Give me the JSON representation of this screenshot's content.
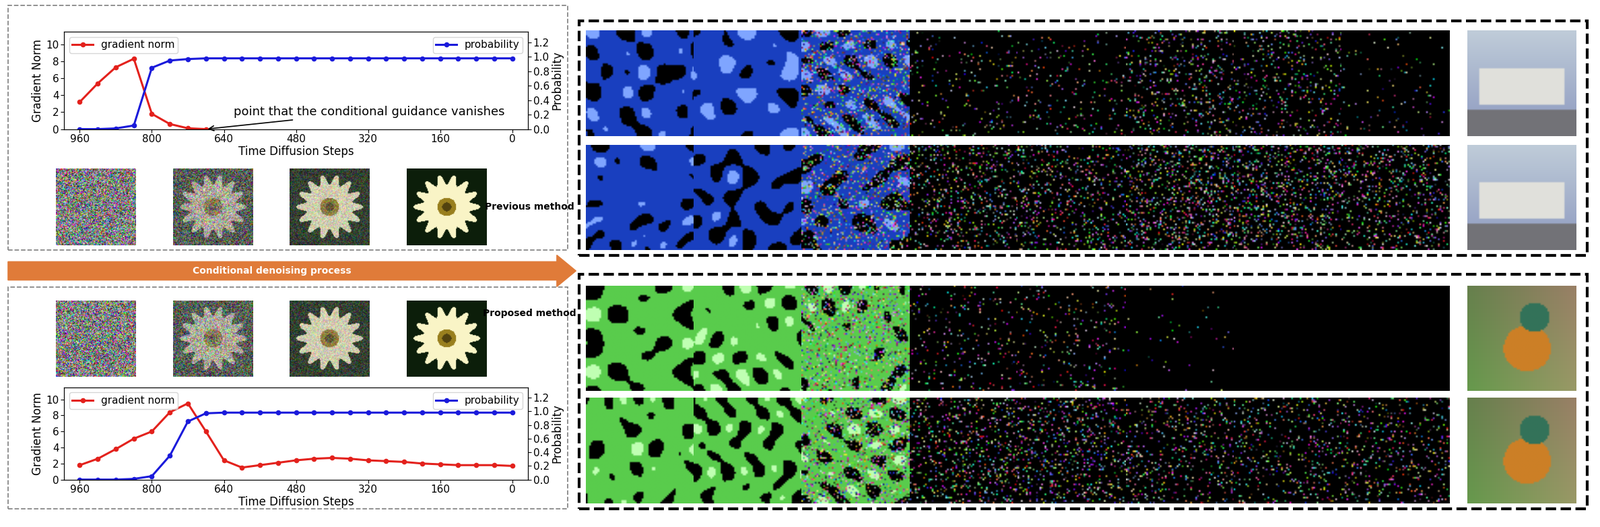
{
  "labels": {
    "previous": "Previous method",
    "proposed": "Proposed method",
    "process": "Conditional denoising process"
  },
  "chart_data": [
    {
      "type": "line",
      "x": [
        960,
        920,
        880,
        840,
        800,
        760,
        720,
        680,
        640,
        600,
        560,
        520,
        480,
        440,
        400,
        360,
        320,
        280,
        240,
        200,
        160,
        120,
        80,
        40,
        0
      ],
      "xlim": [
        995,
        -35
      ],
      "xticks": [
        960,
        800,
        640,
        480,
        320,
        160,
        0
      ],
      "xlabel": "Time Diffusion Steps",
      "ylabel": "Gradient Norm",
      "y2label": "Probability",
      "ylim": [
        0,
        11.5
      ],
      "yticks": [
        0,
        2,
        4,
        6,
        8,
        10
      ],
      "y2lim": [
        0,
        1.35
      ],
      "y2ticks": [
        {
          "value": 0,
          "label": "0.0"
        },
        {
          "value": 0.2,
          "label": "0.2"
        },
        {
          "value": 0.4,
          "label": "0.4"
        },
        {
          "value": 0.6,
          "label": "0.6"
        },
        {
          "value": 0.8,
          "label": "0.8"
        },
        {
          "value": 1.0,
          "label": "1.0"
        },
        {
          "value": 1.2,
          "label": "1.2"
        }
      ],
      "series": [
        {
          "name": "gradient norm",
          "color": "#e3211c",
          "marker": "o",
          "line_style": "-",
          "legend": "upper left",
          "values": [
            3.2,
            5.4,
            7.3,
            8.3,
            1.8,
            0.6,
            0.1,
            0.0,
            null,
            null,
            null,
            null,
            null,
            null,
            null,
            null,
            null,
            null,
            null,
            null,
            null,
            null,
            null,
            null,
            null
          ]
        },
        {
          "name": "probability",
          "color": "#1a1adb",
          "marker": "o",
          "line_style": "-",
          "legend": "upper right",
          "axis": "y2",
          "values": [
            0.0,
            0.0,
            0.01,
            0.05,
            0.85,
            0.95,
            0.97,
            0.98,
            0.98,
            0.98,
            0.98,
            0.98,
            0.98,
            0.98,
            0.98,
            0.98,
            0.98,
            0.98,
            0.98,
            0.98,
            0.98,
            0.98,
            0.98,
            0.98,
            0.98
          ]
        }
      ],
      "annotation": {
        "text": "point that the conditional guidance vanishes",
        "x": 680,
        "y": 0
      }
    },
    {
      "type": "line",
      "x": [
        960,
        920,
        880,
        840,
        800,
        760,
        720,
        680,
        640,
        600,
        560,
        520,
        480,
        440,
        400,
        360,
        320,
        280,
        240,
        200,
        160,
        120,
        80,
        40,
        0
      ],
      "xlim": [
        995,
        -35
      ],
      "xticks": [
        960,
        800,
        640,
        480,
        320,
        160,
        0
      ],
      "xlabel": "Time Diffusion Steps",
      "ylabel": "Gradient Norm",
      "y2label": "Probability",
      "ylim": [
        0,
        11.5
      ],
      "yticks": [
        0,
        2,
        4,
        6,
        8,
        10
      ],
      "y2lim": [
        0,
        1.35
      ],
      "y2ticks": [
        {
          "value": 0,
          "label": "0.0"
        },
        {
          "value": 0.2,
          "label": "0.2"
        },
        {
          "value": 0.4,
          "label": "0.4"
        },
        {
          "value": 0.6,
          "label": "0.6"
        },
        {
          "value": 0.8,
          "label": "0.8"
        },
        {
          "value": 1.0,
          "label": "1.0"
        },
        {
          "value": 1.2,
          "label": "1.2"
        }
      ],
      "series": [
        {
          "name": "gradient norm",
          "color": "#e3211c",
          "marker": "o",
          "line_style": "-",
          "legend": "upper left",
          "values": [
            1.8,
            2.6,
            3.8,
            5.1,
            6.0,
            8.4,
            9.5,
            6.0,
            2.4,
            1.5,
            1.8,
            2.1,
            2.4,
            2.6,
            2.7,
            2.6,
            2.4,
            2.3,
            2.2,
            2.0,
            1.9,
            1.8,
            1.8,
            1.8,
            1.7
          ]
        },
        {
          "name": "probability",
          "color": "#1a1adb",
          "marker": "o",
          "line_style": "-",
          "legend": "upper right",
          "axis": "y2",
          "values": [
            0.0,
            0.0,
            0.0,
            0.01,
            0.05,
            0.35,
            0.85,
            0.97,
            0.98,
            0.98,
            0.98,
            0.98,
            0.98,
            0.98,
            0.98,
            0.98,
            0.98,
            0.98,
            0.98,
            0.98,
            0.98,
            0.98,
            0.98,
            0.98,
            0.98
          ]
        }
      ]
    }
  ]
}
